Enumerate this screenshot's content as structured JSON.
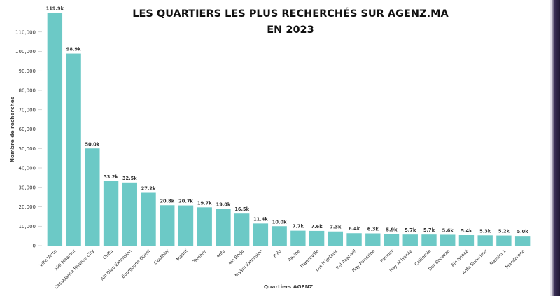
{
  "chart_data": {
    "type": "bar",
    "title_lines": [
      "LES QUARTIERS LES PLUS RECHERCHÉS SUR AGENZ.MA",
      "EN 2023"
    ],
    "xlabel": "Quartiers AGENZ",
    "ylabel": "Nombre de recherches",
    "ylim": [
      0,
      120000
    ],
    "yticks": [
      0,
      10000,
      20000,
      30000,
      40000,
      50000,
      60000,
      70000,
      80000,
      90000,
      100000,
      110000
    ],
    "ytick_labels": [
      "0",
      "10,000",
      "20,000",
      "30,000",
      "40,000",
      "50,000",
      "60,000",
      "70,000",
      "80,000",
      "90,000",
      "100,000",
      "110,000"
    ],
    "grid": false,
    "bar_color": "#6cc9c6",
    "categories": [
      "Ville Verte",
      "Sidi Maarouf",
      "Casablanca Finance City",
      "Oulfa",
      "Aïn Diab Extension",
      "Bourgogne Ouest",
      "Gauthier",
      "Maârif",
      "Tamaris",
      "Anfa",
      "Aïn Borja",
      "Maârif Extension",
      "Polo",
      "Racine",
      "Franceville",
      "Les Hôpitaux",
      "Bel Raphaël",
      "Hay Palestine",
      "Palmier",
      "Hay Al Hanâa",
      "Californie",
      "Dar Bouazza",
      "Aïn Sebaâ",
      "Anfa Supérieur",
      "Nassim 1",
      "Mandarona"
    ],
    "values": [
      119900,
      98900,
      50000,
      33200,
      32500,
      27200,
      20800,
      20700,
      19700,
      19000,
      16500,
      11400,
      10000,
      7700,
      7600,
      7300,
      6400,
      6300,
      5900,
      5700,
      5700,
      5600,
      5400,
      5300,
      5200,
      5000
    ],
    "value_labels": [
      "119.9k",
      "98.9k",
      "50.0k",
      "33.2k",
      "32.5k",
      "27.2k",
      "20.8k",
      "20.7k",
      "19.7k",
      "19.0k",
      "16.5k",
      "11.4k",
      "10.0k",
      "7.7k",
      "7.6k",
      "7.3k",
      "6.4k",
      "6.3k",
      "5.9k",
      "5.7k",
      "5.7k",
      "5.6k",
      "5.4k",
      "5.3k",
      "5.2k",
      "5.0k"
    ]
  }
}
